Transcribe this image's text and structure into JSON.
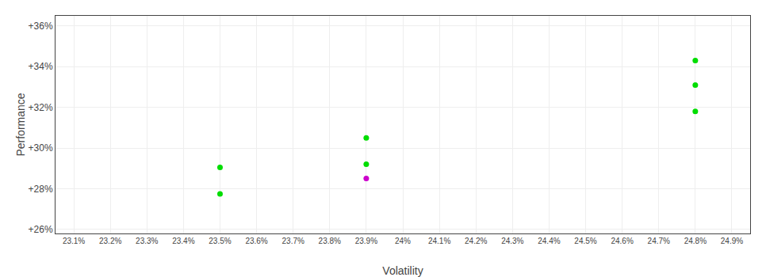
{
  "chart_data": {
    "type": "scatter",
    "x": [
      23.5,
      23.5,
      23.9,
      23.9,
      23.9,
      24.8,
      24.8,
      24.8
    ],
    "values": [
      29.05,
      27.75,
      30.5,
      29.2,
      28.5,
      34.3,
      33.1,
      31.8
    ],
    "colors": [
      "#00dd00",
      "#00dd00",
      "#00dd00",
      "#00dd00",
      "#cc00cc",
      "#00dd00",
      "#00dd00",
      "#00dd00"
    ],
    "xlabel": "Volatility",
    "ylabel": "Performance",
    "xlim": [
      23.05,
      24.95
    ],
    "ylim": [
      25.8,
      36.5
    ],
    "xticks": [
      {
        "value": 23.1,
        "label": "23.1%"
      },
      {
        "value": 23.2,
        "label": "23.2%"
      },
      {
        "value": 23.3,
        "label": "23.3%"
      },
      {
        "value": 23.4,
        "label": "23.4%"
      },
      {
        "value": 23.5,
        "label": "23.5%"
      },
      {
        "value": 23.6,
        "label": "23.6%"
      },
      {
        "value": 23.7,
        "label": "23.7%"
      },
      {
        "value": 23.8,
        "label": "23.8%"
      },
      {
        "value": 23.9,
        "label": "23.9%"
      },
      {
        "value": 24.0,
        "label": "24%"
      },
      {
        "value": 24.1,
        "label": "24.1%"
      },
      {
        "value": 24.2,
        "label": "24.2%"
      },
      {
        "value": 24.3,
        "label": "24.3%"
      },
      {
        "value": 24.4,
        "label": "24.4%"
      },
      {
        "value": 24.5,
        "label": "24.5%"
      },
      {
        "value": 24.6,
        "label": "24.6%"
      },
      {
        "value": 24.7,
        "label": "24.7%"
      },
      {
        "value": 24.8,
        "label": "24.8%"
      },
      {
        "value": 24.9,
        "label": "24.9%"
      }
    ],
    "yticks": [
      {
        "value": 26,
        "label": "+26%"
      },
      {
        "value": 28,
        "label": "+28%"
      },
      {
        "value": 30,
        "label": "+30%"
      },
      {
        "value": 32,
        "label": "+32%"
      },
      {
        "value": 34,
        "label": "+34%"
      },
      {
        "value": 36,
        "label": "+36%"
      }
    ],
    "grid": true
  }
}
